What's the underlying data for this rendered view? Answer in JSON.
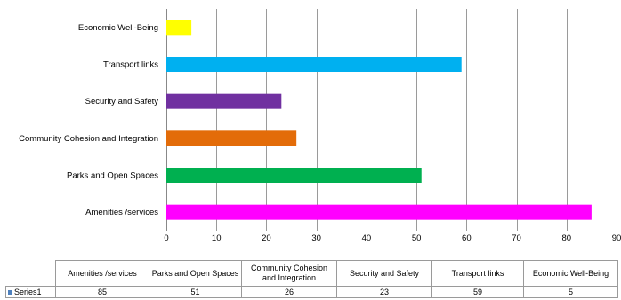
{
  "chart_data": {
    "type": "bar",
    "orientation": "horizontal",
    "categories": [
      "Amenities /services",
      "Parks and Open Spaces",
      "Community Cohesion and Integration",
      "Security and Safety",
      "Transport links",
      "Economic Well-Being"
    ],
    "series": [
      {
        "name": "Series1",
        "values": [
          85,
          51,
          26,
          23,
          59,
          5
        ]
      }
    ],
    "colors": [
      "#ff00ff",
      "#00b050",
      "#e36c09",
      "#7030a0",
      "#00b0f0",
      "#ffff00"
    ],
    "legend_key_color": "#4f81bd",
    "xlim": [
      0,
      90
    ],
    "xticks": [
      "0",
      "10",
      "20",
      "30",
      "40",
      "50",
      "60",
      "70",
      "80",
      "90"
    ],
    "grid": true,
    "data_table": true,
    "table_header_lines": [
      [
        "Amenities /services"
      ],
      [
        "Parks and Open Spaces"
      ],
      [
        "Community Cohesion",
        "and Integration"
      ],
      [
        "Security and Safety"
      ],
      [
        "Transport links"
      ],
      [
        "Economic Well-Being"
      ]
    ]
  }
}
